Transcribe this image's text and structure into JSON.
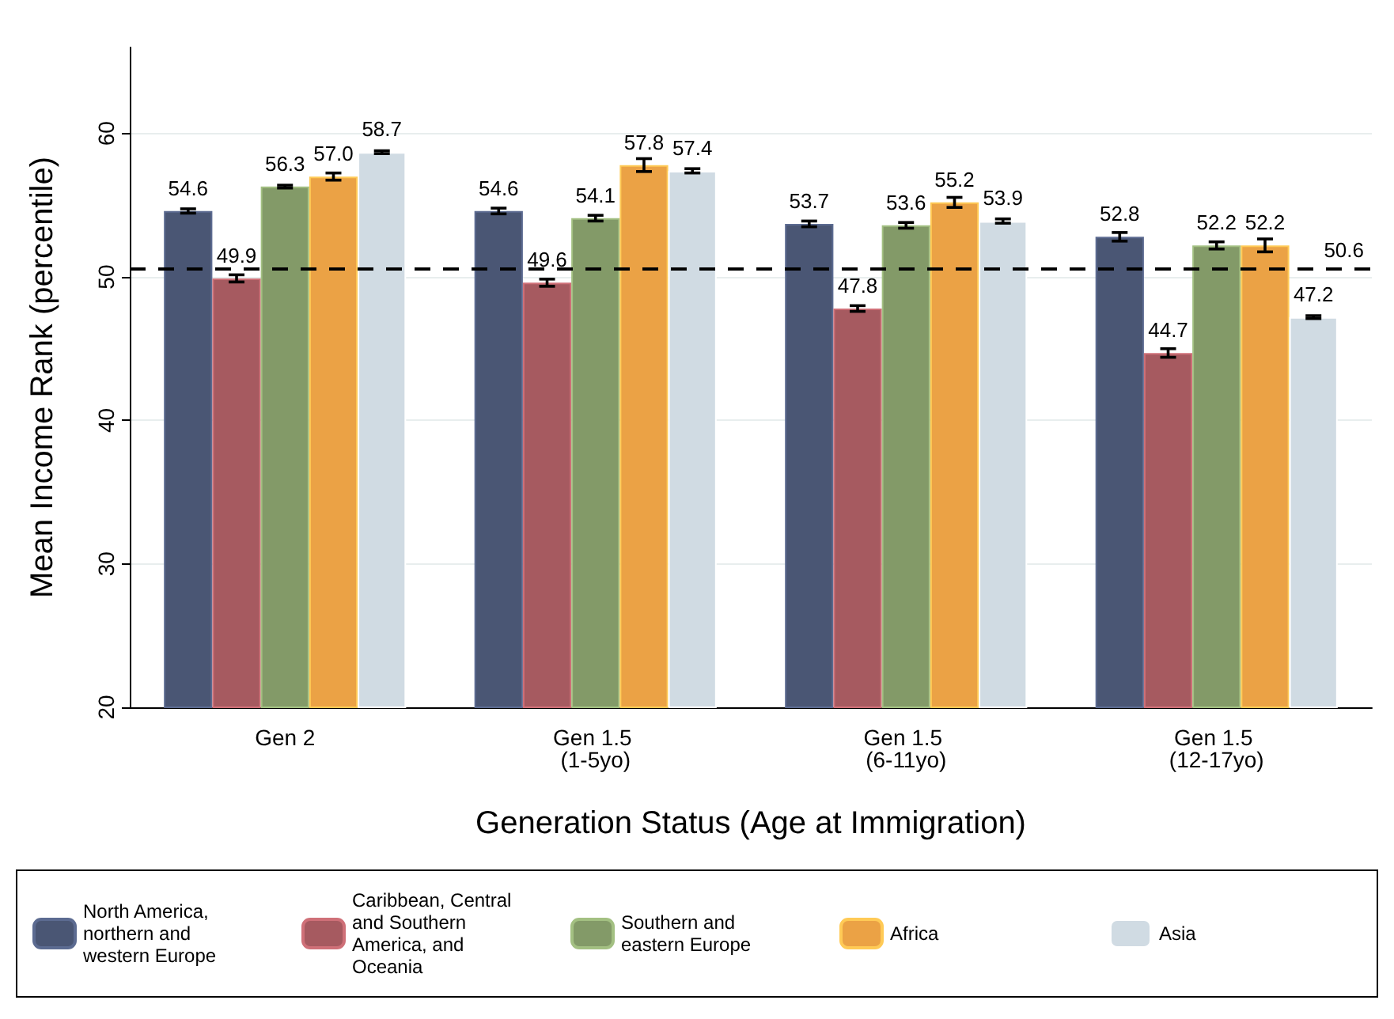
{
  "chart_data": {
    "type": "bar",
    "categories": [
      "Gen 2",
      "Gen 1.5 (1-5yo)",
      "Gen 1.5 (6-11yo)",
      "Gen 1.5 (12-17yo)"
    ],
    "xlabel": "Generation Status (Age at Immigration)",
    "ylabel": "Mean Income Rank (percentile)",
    "ylim": [
      20,
      66
    ],
    "yticks": [
      20,
      30,
      40,
      50,
      60
    ],
    "grid": "y",
    "legend": "bottom",
    "series": [
      {
        "name": "North America, northern and western Europe",
        "color": "#4a5674",
        "values": [
          54.6,
          54.6,
          53.7,
          52.8
        ],
        "errors": [
          0.15,
          0.2,
          0.2,
          0.3
        ],
        "value_labels": [
          "54.6",
          "54.6",
          "53.7",
          "52.8"
        ]
      },
      {
        "name": "Caribbean, Central and Southern America, and Oceania",
        "color": "#a65a60",
        "values": [
          49.9,
          49.6,
          47.8,
          44.7
        ],
        "errors": [
          0.25,
          0.25,
          0.2,
          0.3
        ],
        "value_labels": [
          "49.9",
          "49.6",
          "47.8",
          "44.7"
        ]
      },
      {
        "name": "Southern and eastern Europe",
        "color": "#839a68",
        "values": [
          56.3,
          54.1,
          53.6,
          52.2
        ],
        "errors": [
          0.1,
          0.2,
          0.2,
          0.25
        ],
        "value_labels": [
          "56.3",
          "54.1",
          "53.6",
          "52.2"
        ]
      },
      {
        "name": "Africa",
        "color": "#eba245",
        "values": [
          57.0,
          57.8,
          55.2,
          52.2
        ],
        "errors": [
          0.25,
          0.45,
          0.35,
          0.45
        ],
        "value_labels": [
          "57.0",
          "57.8",
          "55.2",
          "52.2"
        ]
      },
      {
        "name": "Asia",
        "color": "#d0dbe3",
        "values": [
          58.7,
          57.4,
          53.9,
          47.2
        ],
        "errors": [
          0.1,
          0.15,
          0.15,
          0.1
        ],
        "value_labels": [
          "58.7",
          "57.4",
          "53.9",
          "47.2"
        ]
      }
    ],
    "ref_lines": [
      {
        "axis": "y",
        "value": 50.6,
        "label": "50.6",
        "color": "#000000",
        "line_style": "dashed"
      }
    ]
  }
}
